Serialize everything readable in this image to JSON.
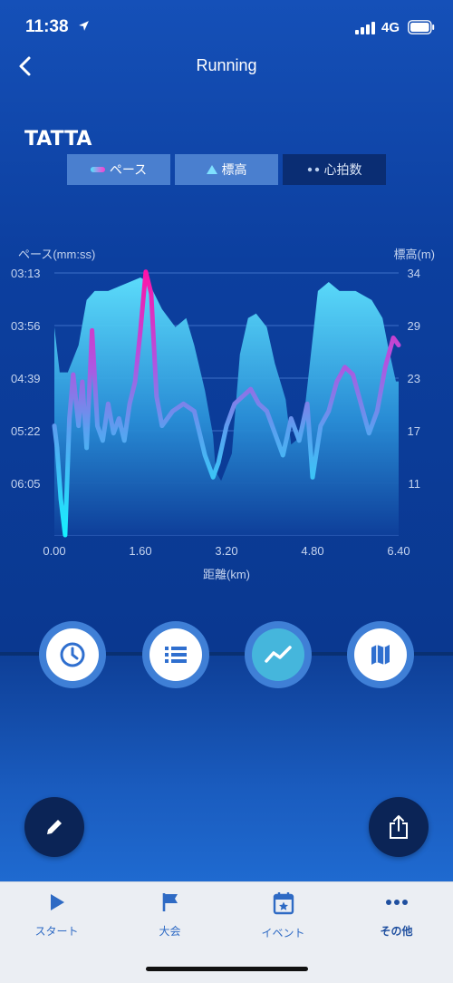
{
  "status": {
    "time": "11:38",
    "network": "4G"
  },
  "header": {
    "title": "Running"
  },
  "brand": {
    "logo_text": "TATTA"
  },
  "legend": [
    {
      "label": "ペース",
      "icon": "pace-line-icon",
      "active": true
    },
    {
      "label": "標高",
      "icon": "elevation-triangle-icon",
      "active": true
    },
    {
      "label": "心拍数",
      "icon": "heart-rate-dots-icon",
      "active": false
    }
  ],
  "chart_data": {
    "type": "area",
    "title": "",
    "xlabel": "距離(km)",
    "ylabel_left": "ペース(mm:ss)",
    "ylabel_right": "標高(m)",
    "x_ticks": [
      "0.00",
      "1.60",
      "3.20",
      "4.80",
      "6.40"
    ],
    "xlim": [
      0,
      6.4
    ],
    "y_left_ticks": [
      "03:13",
      "03:56",
      "04:39",
      "05:22",
      "06:05"
    ],
    "y_right_ticks": [
      "34",
      "29",
      "23",
      "17",
      "11"
    ],
    "y_right_lim": [
      5,
      34
    ],
    "grid": true,
    "series": [
      {
        "name": "標高",
        "type": "area",
        "axis": "right",
        "x": [
          0.0,
          0.1,
          0.25,
          0.45,
          0.6,
          0.75,
          1.0,
          1.2,
          1.4,
          1.6,
          1.75,
          2.0,
          2.25,
          2.45,
          2.6,
          2.8,
          2.95,
          3.0,
          3.1,
          3.3,
          3.45,
          3.6,
          3.75,
          3.95,
          4.1,
          4.3,
          4.4,
          4.6,
          4.9,
          5.1,
          5.3,
          5.6,
          5.9,
          6.1,
          6.2,
          6.35,
          6.4
        ],
        "values": [
          28,
          23,
          23,
          26,
          31,
          32,
          32,
          32.5,
          33,
          33.5,
          33,
          30,
          28,
          29,
          26,
          21,
          16,
          12,
          11,
          14,
          25,
          29,
          29.5,
          28,
          24,
          20,
          15,
          16,
          32,
          33,
          32,
          32,
          31,
          29,
          26,
          22,
          22
        ]
      },
      {
        "name": "ペース",
        "type": "line",
        "axis": "left",
        "unit": "min/km",
        "x": [
          0.0,
          0.05,
          0.12,
          0.2,
          0.28,
          0.35,
          0.45,
          0.52,
          0.6,
          0.7,
          0.8,
          0.9,
          1.0,
          1.1,
          1.2,
          1.3,
          1.4,
          1.5,
          1.6,
          1.7,
          1.8,
          1.9,
          2.0,
          2.2,
          2.4,
          2.6,
          2.8,
          2.95,
          3.05,
          3.2,
          3.35,
          3.5,
          3.65,
          3.8,
          3.95,
          4.1,
          4.25,
          4.4,
          4.55,
          4.7,
          4.8,
          4.95,
          5.1,
          5.25,
          5.4,
          5.55,
          5.7,
          5.85,
          6.0,
          6.15,
          6.3,
          6.4
        ],
        "values": [
          5.3,
          5.6,
          6.3,
          6.8,
          5.2,
          4.6,
          5.3,
          4.7,
          5.6,
          4.0,
          5.3,
          5.5,
          5.0,
          5.4,
          5.2,
          5.5,
          5.0,
          4.7,
          4.0,
          3.2,
          3.5,
          4.9,
          5.3,
          5.1,
          5.0,
          5.1,
          5.7,
          6.0,
          5.8,
          5.3,
          5.0,
          4.9,
          4.8,
          5.0,
          5.1,
          5.4,
          5.7,
          5.2,
          5.5,
          5.0,
          6.0,
          5.3,
          5.1,
          4.7,
          4.5,
          4.6,
          5.0,
          5.4,
          5.1,
          4.5,
          4.1,
          4.2
        ]
      }
    ]
  },
  "actions": [
    {
      "name": "clock-button",
      "icon": "clock-icon",
      "active": false
    },
    {
      "name": "list-button",
      "icon": "list-icon",
      "active": false
    },
    {
      "name": "graph-button",
      "icon": "trend-line-icon",
      "active": true
    },
    {
      "name": "map-button",
      "icon": "map-icon",
      "active": false
    }
  ],
  "tabbar": {
    "items": [
      {
        "label": "スタート",
        "icon": "play-icon"
      },
      {
        "label": "大会",
        "icon": "flag-icon"
      },
      {
        "label": "イベント",
        "icon": "calendar-star-icon"
      },
      {
        "label": "その他",
        "icon": "more-dots-icon"
      }
    ]
  },
  "colors": {
    "accent": "#1f6ad0",
    "pace_high": "#ff1aa8",
    "pace_low": "#1fe2ff",
    "elevation_fill": "#4fd0f0"
  }
}
